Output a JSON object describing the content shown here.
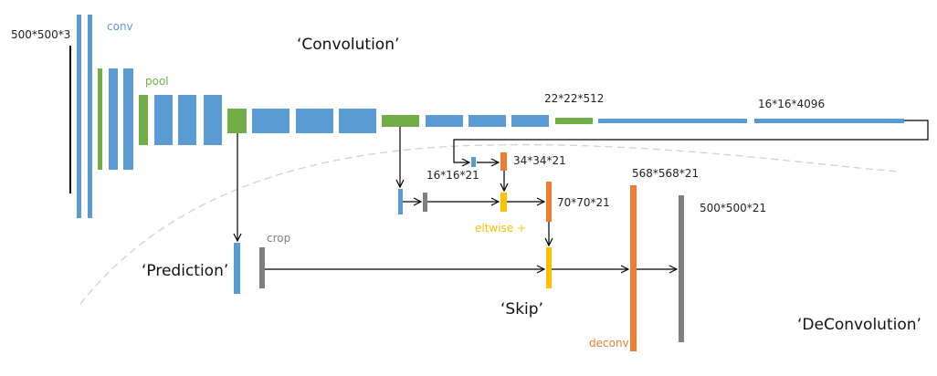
{
  "colors": {
    "conv": "#5b9bd5",
    "pool": "#70ad47",
    "deconv": "#ed7d31",
    "eltwise": "#ffc000",
    "crop": "#7f7f7f"
  },
  "labels": {
    "input_size": "500*500*3",
    "conv": "conv",
    "pool": "pool",
    "convolution": "‘Convolution’",
    "size_22": "22*22*512",
    "size_4096": "16*16*4096",
    "size_16": "16*16*21",
    "size_34": "34*34*21",
    "eltwise": "eltwise +",
    "size_70": "70*70*21",
    "size_568": "568*568*21",
    "size_500": "500*500*21",
    "prediction": "‘Prediction’",
    "crop": "crop",
    "skip": "‘Skip’",
    "deconv": "deconv",
    "deconvolution": "‘DeConvolution’"
  }
}
